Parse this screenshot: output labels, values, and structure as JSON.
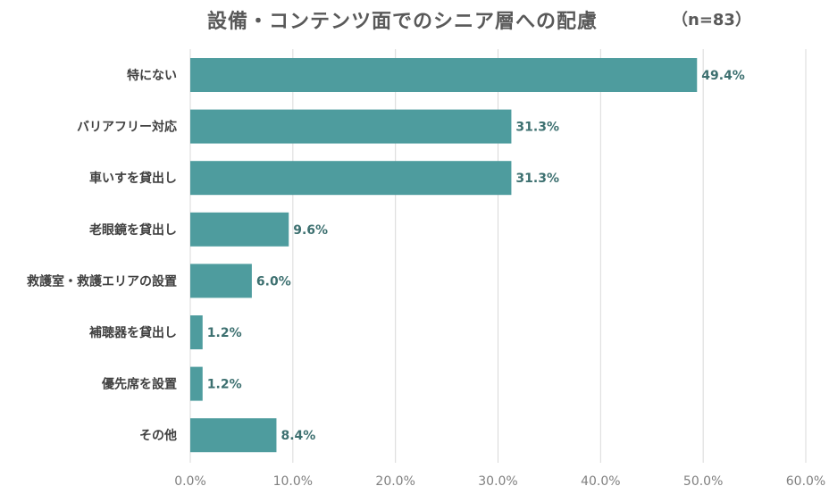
{
  "header": {
    "title": "設備・コンテンツ面でのシニア層への配慮",
    "sample": "（n=83）"
  },
  "colors": {
    "bar": "#4e9c9e",
    "value_label": "#3d7070",
    "grid": "#d9d9d9"
  },
  "chart_data": {
    "type": "bar",
    "orientation": "horizontal",
    "title": "設備・コンテンツ面でのシニア層への配慮",
    "categories": [
      "特にない",
      "バリアフリー対応",
      "車いすを貸出し",
      "老眼鏡を貸出し",
      "救護室・救護エリアの設置",
      "補聴器を貸出し",
      "優先席を設置",
      "その他"
    ],
    "values": [
      49.4,
      31.3,
      31.3,
      9.6,
      6.0,
      1.2,
      1.2,
      8.4
    ],
    "value_labels": [
      "49.4%",
      "31.3%",
      "31.3%",
      "9.6%",
      "6.0%",
      "1.2%",
      "1.2%",
      "8.4%"
    ],
    "xlim": [
      0,
      60
    ],
    "xticks": [
      "0.0%",
      "10.0%",
      "20.0%",
      "30.0%",
      "40.0%",
      "50.0%",
      "60.0%"
    ],
    "grid": true,
    "legend": "none"
  }
}
